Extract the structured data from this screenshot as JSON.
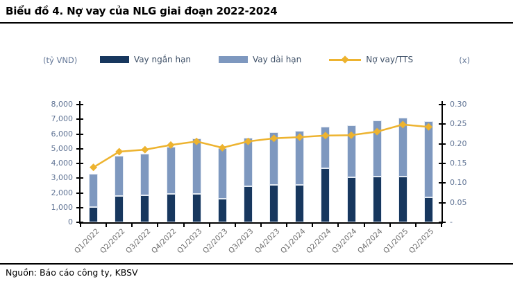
{
  "header": {
    "title": "Biểu đồ 4. Nợ vay của NLG giai đoạn 2022-2024"
  },
  "footer": {
    "source": "Nguồn: Báo cáo công ty, KBSV"
  },
  "chart": {
    "left_axis_unit": "(tỷ VND)",
    "right_axis_unit": "(x)",
    "legend": [
      {
        "label": "Vay ngắn hạn",
        "type": "bar",
        "color": "#17375e"
      },
      {
        "label": "Vay dài hạn",
        "type": "bar",
        "color": "#7e98bf"
      },
      {
        "label": "Nợ vay/TTS",
        "type": "line",
        "color": "#edb32f"
      }
    ]
  },
  "chart_data": {
    "type": "bar",
    "subtype": "stacked bars (left axis) with line on secondary right axis",
    "title": "Biểu đồ 4. Nợ vay của NLG giai đoạn 2022-2024",
    "categories": [
      "Q1/2022",
      "Q2/2022",
      "Q3/2022",
      "Q4/2022",
      "Q1/2023",
      "Q2/2023",
      "Q3/2023",
      "Q4/2023",
      "Q1/2024",
      "Q2/2024",
      "Q3/2024",
      "Q4/2024",
      "Q1/2025",
      "Q2/2025"
    ],
    "series": [
      {
        "name": "Vay ngắn hạn",
        "type": "bar",
        "axis": "left",
        "color": "#17375e",
        "values": [
          1050,
          1800,
          1850,
          1950,
          1950,
          1600,
          2450,
          2550,
          2550,
          3650,
          3050,
          3100,
          3100,
          1700
        ]
      },
      {
        "name": "Vay dài hạn",
        "type": "bar",
        "axis": "left",
        "color": "#7e98bf",
        "values": [
          2250,
          2700,
          2800,
          3200,
          3750,
          3450,
          3300,
          3550,
          3650,
          2850,
          3550,
          3800,
          4000,
          5150
        ]
      },
      {
        "name": "Nợ vay/TTS",
        "type": "line",
        "axis": "right",
        "color": "#edb32f",
        "values": [
          0.14,
          0.18,
          0.185,
          0.197,
          0.206,
          0.19,
          0.206,
          0.214,
          0.217,
          0.221,
          0.222,
          0.231,
          0.249,
          0.243
        ]
      }
    ],
    "left_axis": {
      "label": "(tỷ VND)",
      "min": 0,
      "max": 8000,
      "step": 1000,
      "zero_label": "0"
    },
    "right_axis": {
      "label": "(x)",
      "min": 0,
      "max": 0.3,
      "step": 0.05,
      "zero_label": "-"
    },
    "grid": false,
    "legend_position": "top"
  }
}
